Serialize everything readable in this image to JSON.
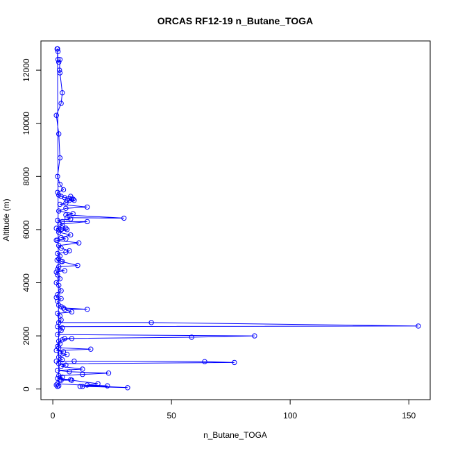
{
  "chart_data": {
    "type": "scatter",
    "title": "ORCAS RF12-19 n_Butane_TOGA",
    "xlabel": "n_Butane_TOGA",
    "ylabel": "Altitude (m)",
    "xlim": [
      -5,
      159
    ],
    "ylim": [
      -400,
      13100
    ],
    "x_ticks": [
      "0",
      "50",
      "100",
      "150"
    ],
    "x_tick_values": [
      0,
      50,
      100,
      150
    ],
    "y_ticks": [
      "0",
      "2000",
      "4000",
      "6000",
      "8000",
      "10000",
      "12000"
    ],
    "y_tick_values": [
      0,
      2000,
      4000,
      6000,
      8000,
      10000,
      12000
    ],
    "grid": false,
    "series": [
      {
        "color": "#0000ff",
        "marker": "open-circle",
        "line": true,
        "points": [
          [
            2.0,
            12800
          ],
          [
            2.2,
            12400
          ],
          [
            2.5,
            12300
          ],
          [
            3.0,
            12400
          ],
          [
            2.8,
            12000
          ],
          [
            3.0,
            11900
          ],
          [
            4.0,
            11150
          ],
          [
            3.5,
            10750
          ],
          [
            1.5,
            10300
          ],
          [
            2.5,
            9600
          ],
          [
            3.0,
            8700
          ],
          [
            2.0,
            8000
          ],
          [
            3.0,
            7700
          ],
          [
            4.5,
            7500
          ],
          [
            2.0,
            7400
          ],
          [
            2.5,
            7300
          ],
          [
            3.5,
            7250
          ],
          [
            5.0,
            7200
          ],
          [
            7.5,
            7250
          ],
          [
            8.0,
            7150
          ],
          [
            6.0,
            7100
          ],
          [
            8.5,
            7150
          ],
          [
            9.0,
            7100
          ],
          [
            7.0,
            7100
          ],
          [
            5.5,
            7000
          ],
          [
            3.0,
            6950
          ],
          [
            14.5,
            6850
          ],
          [
            5.5,
            6800
          ],
          [
            2.5,
            6700
          ],
          [
            8.5,
            6600
          ],
          [
            5.5,
            6550
          ],
          [
            30.0,
            6430
          ],
          [
            6.0,
            6450
          ],
          [
            7.5,
            6400
          ],
          [
            2.0,
            6350
          ],
          [
            4.0,
            6300
          ],
          [
            14.5,
            6300
          ],
          [
            3.0,
            6200
          ],
          [
            4.0,
            6150
          ],
          [
            5.5,
            6050
          ],
          [
            1.5,
            6050
          ],
          [
            2.5,
            6000
          ],
          [
            3.5,
            6000
          ],
          [
            6.0,
            6000
          ],
          [
            2.5,
            5900
          ],
          [
            7.5,
            5800
          ],
          [
            3.5,
            5700
          ],
          [
            5.5,
            5650
          ],
          [
            2.0,
            5600
          ],
          [
            1.5,
            5600
          ],
          [
            11.0,
            5500
          ],
          [
            2.5,
            5400
          ],
          [
            3.5,
            5300
          ],
          [
            7.0,
            5200
          ],
          [
            5.5,
            5150
          ],
          [
            2.0,
            5100
          ],
          [
            3.0,
            5000
          ],
          [
            2.5,
            4900
          ],
          [
            1.8,
            4850
          ],
          [
            4.0,
            4800
          ],
          [
            3.5,
            4800
          ],
          [
            10.5,
            4650
          ],
          [
            2.5,
            4600
          ],
          [
            2.0,
            4500
          ],
          [
            5.0,
            4450
          ],
          [
            1.5,
            4400
          ],
          [
            2.0,
            4300
          ],
          [
            3.0,
            4150
          ],
          [
            1.5,
            4000
          ],
          [
            2.5,
            3900
          ],
          [
            3.5,
            3700
          ],
          [
            2.0,
            3550
          ],
          [
            1.5,
            3450
          ],
          [
            3.5,
            3400
          ],
          [
            2.0,
            3300
          ],
          [
            2.5,
            3150
          ],
          [
            3.5,
            3100
          ],
          [
            4.5,
            3050
          ],
          [
            14.5,
            3000
          ],
          [
            5.0,
            3000
          ],
          [
            8.0,
            2900
          ],
          [
            2.0,
            2850
          ],
          [
            3.0,
            2750
          ],
          [
            3.5,
            2600
          ],
          [
            2.5,
            2500
          ],
          [
            41.5,
            2500
          ],
          [
            154.0,
            2370
          ],
          [
            2.0,
            2350
          ],
          [
            4.0,
            2300
          ],
          [
            3.5,
            2200
          ],
          [
            2.0,
            2050
          ],
          [
            85.0,
            2000
          ],
          [
            58.5,
            1950
          ],
          [
            5.0,
            1900
          ],
          [
            8.0,
            1900
          ],
          [
            4.0,
            1850
          ],
          [
            2.5,
            1800
          ],
          [
            3.0,
            1700
          ],
          [
            2.0,
            1600
          ],
          [
            2.5,
            1550
          ],
          [
            16.0,
            1500
          ],
          [
            1.5,
            1450
          ],
          [
            4.5,
            1400
          ],
          [
            3.0,
            1350
          ],
          [
            6.0,
            1300
          ],
          [
            2.5,
            1200
          ],
          [
            4.0,
            1100
          ],
          [
            1.5,
            1050
          ],
          [
            9.0,
            1050
          ],
          [
            64.0,
            1030
          ],
          [
            76.5,
            1000
          ],
          [
            2.5,
            950
          ],
          [
            5.5,
            900
          ],
          [
            3.5,
            850
          ],
          [
            12.5,
            750
          ],
          [
            2.0,
            700
          ],
          [
            7.0,
            650
          ],
          [
            23.5,
            600
          ],
          [
            12.5,
            550
          ],
          [
            2.5,
            500
          ],
          [
            4.0,
            450
          ],
          [
            2.0,
            400
          ],
          [
            7.5,
            350
          ],
          [
            3.5,
            330
          ],
          [
            3.0,
            350
          ],
          [
            8.0,
            330
          ],
          [
            19.0,
            200
          ],
          [
            14.5,
            150
          ],
          [
            23.0,
            120
          ],
          [
            11.5,
            100
          ],
          [
            12.5,
            100
          ],
          [
            31.5,
            50
          ],
          [
            2.0,
            200
          ],
          [
            1.5,
            150
          ],
          [
            2.0,
            100
          ],
          [
            2.5,
            120
          ],
          [
            2.0,
            12800
          ],
          [
            1.8,
            12800
          ],
          [
            2.2,
            12700
          ]
        ]
      }
    ]
  }
}
